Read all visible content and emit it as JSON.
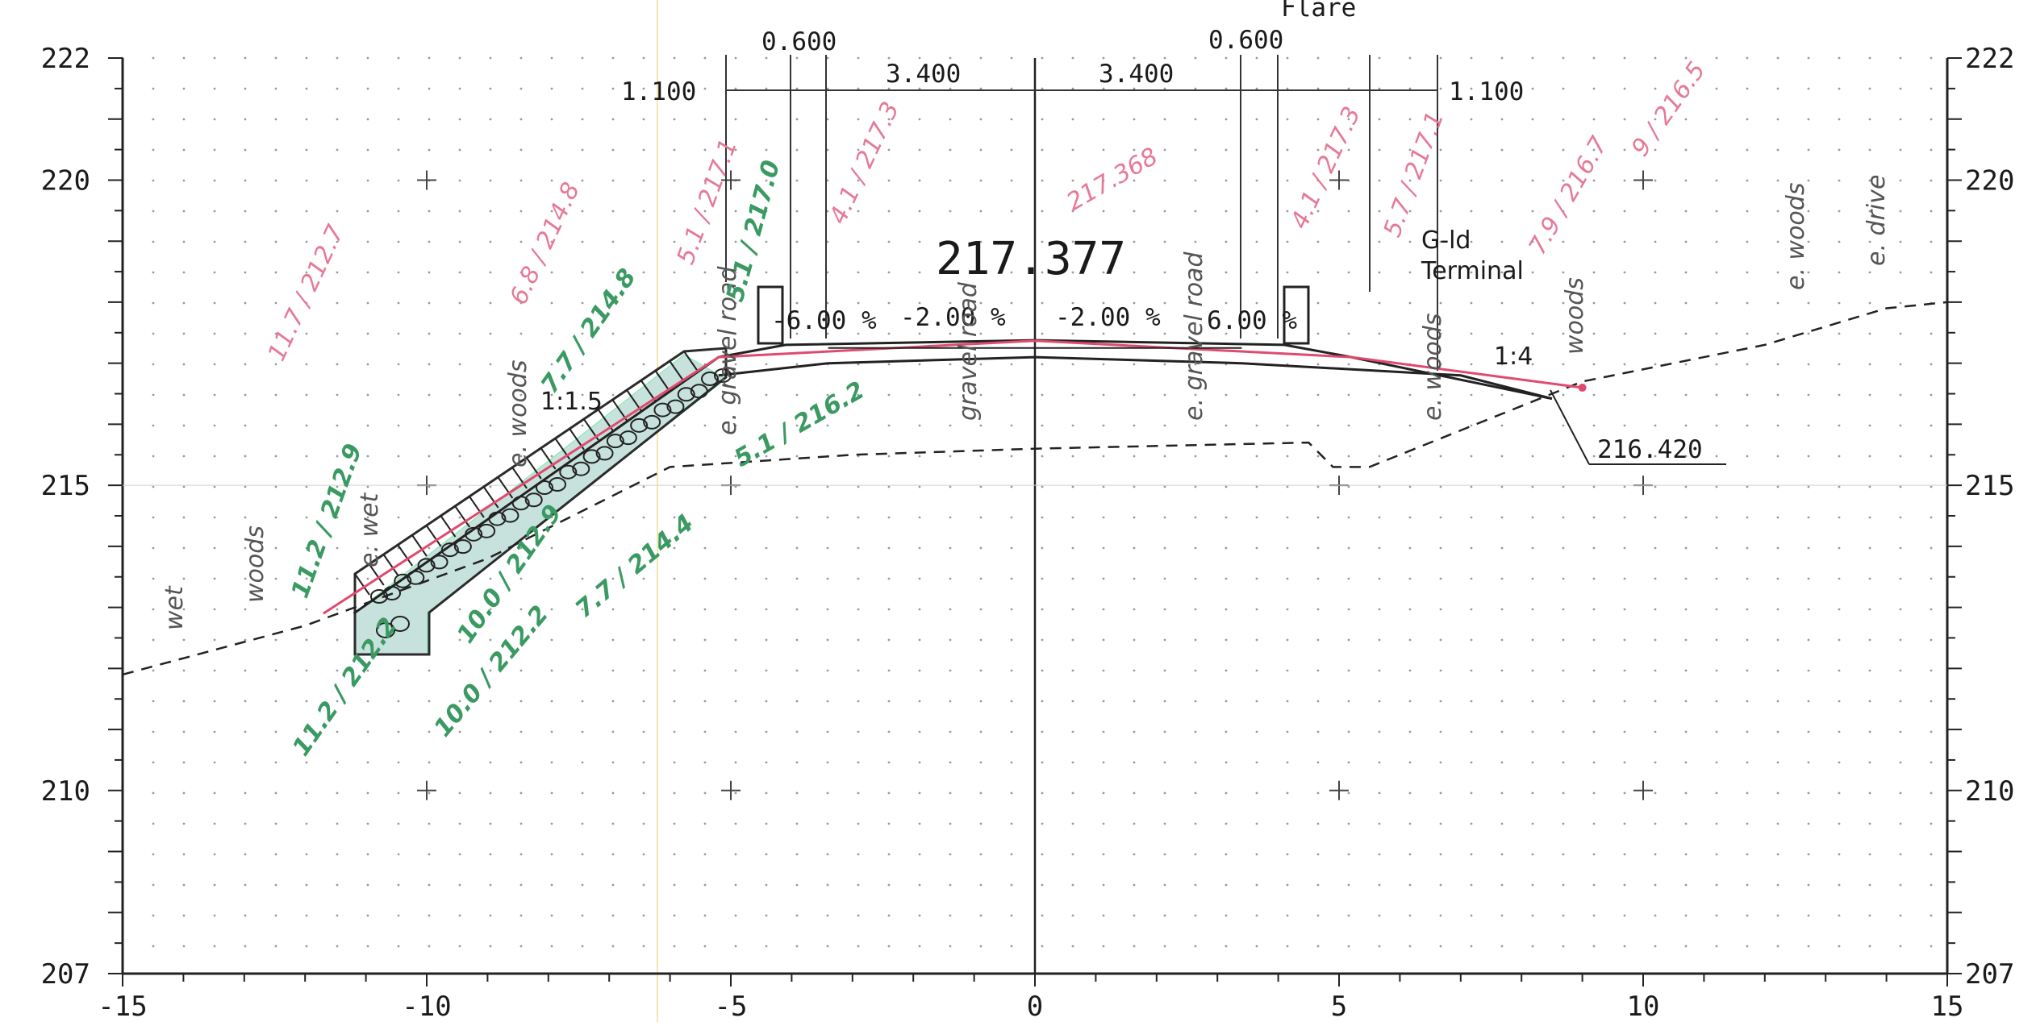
{
  "drawing": {
    "title_partial": "Flare",
    "top_dimensions": {
      "left_outer": "1.100",
      "left_shoulder": "0.600",
      "left_lane": "3.400",
      "right_lane": "3.400",
      "right_shoulder": "0.600",
      "right_outer": "1.100"
    },
    "centerline_elevation": "217.377",
    "slopes": {
      "left_shoulder": "-6.00 %",
      "left_lane": "-2.00 %",
      "right_lane": "-2.00 %",
      "right_shoulder": "6.00 %"
    },
    "side_slope_left": "1:1.5",
    "side_slope_right": "1:4",
    "terminal_label": "G-ld\nTerminal",
    "toe_elevation": "216.420",
    "ground_annotations": {
      "wet_outer": "wet",
      "woods_outer": "woods",
      "e_wet": "e. wet",
      "e_woods_left": "e. woods",
      "e_gravel_road_left": "e. gravel road",
      "gravel_road": "gravel road",
      "e_gravel_road_right": "e. gravel road",
      "e_woods_mid": "e. woods",
      "woods_right": "woods",
      "e_woods_right": "e. woods",
      "e_drive": "e. drive"
    },
    "pink_notes": [
      "11.7 / 212.7",
      "6.8 / 214.8",
      "5.1 / 217.1",
      "4.1 / 217.3",
      "217.368",
      "4.1 / 217.3",
      "5.7 / 217.1",
      "7.9 / 216.7",
      "9 / 216.5"
    ],
    "green_notes": [
      "5.1 / 217.0",
      "7.7 / 214.8",
      "5.1 / 216.2",
      "11.2 / 212.9",
      "10.0 / 212.9",
      "7.7 / 214.4",
      "11.2 / 212.2",
      "10.0 / 212.2"
    ]
  },
  "chart_data": {
    "type": "cross-section",
    "xlim": [
      -15,
      15
    ],
    "ylim": [
      207,
      222
    ],
    "x_ticks": [
      -15,
      -10,
      -5,
      0,
      5,
      10,
      15
    ],
    "x_tick_labels": [
      "-15",
      "-10",
      "-5",
      "0",
      "5",
      "10",
      "15"
    ],
    "y_ticks": [
      207,
      210,
      215,
      220,
      222
    ],
    "y_tick_labels": [
      "207",
      "210",
      "215",
      "220",
      "222"
    ],
    "grid": true,
    "design_surface": {
      "x": [
        -11.2,
        -5.2,
        -4.1,
        0,
        4.1,
        5.2,
        8.5
      ],
      "y": [
        212.9,
        217.1,
        217.3,
        217.377,
        217.3,
        217.1,
        216.42
      ]
    },
    "subgrade": {
      "x": [
        -5.2,
        -3.4,
        0,
        3.4,
        7,
        8.5
      ],
      "y": [
        216.8,
        217.0,
        217.1,
        217.0,
        216.8,
        216.42
      ]
    },
    "existing_ground": {
      "x": [
        -15,
        -12,
        -9,
        -6,
        -3,
        0,
        4.5,
        4.9,
        5.5,
        7,
        9,
        12,
        14,
        15
      ],
      "y": [
        211.9,
        212.7,
        213.8,
        215.3,
        215.5,
        215.6,
        215.7,
        215.3,
        215.3,
        215.9,
        216.7,
        217.3,
        217.9,
        218.0
      ]
    },
    "proposed_line": {
      "x": [
        -11.7,
        -5.2,
        0,
        5.2,
        9.0
      ],
      "y": [
        212.9,
        217.1,
        217.368,
        217.1,
        216.6
      ]
    }
  }
}
